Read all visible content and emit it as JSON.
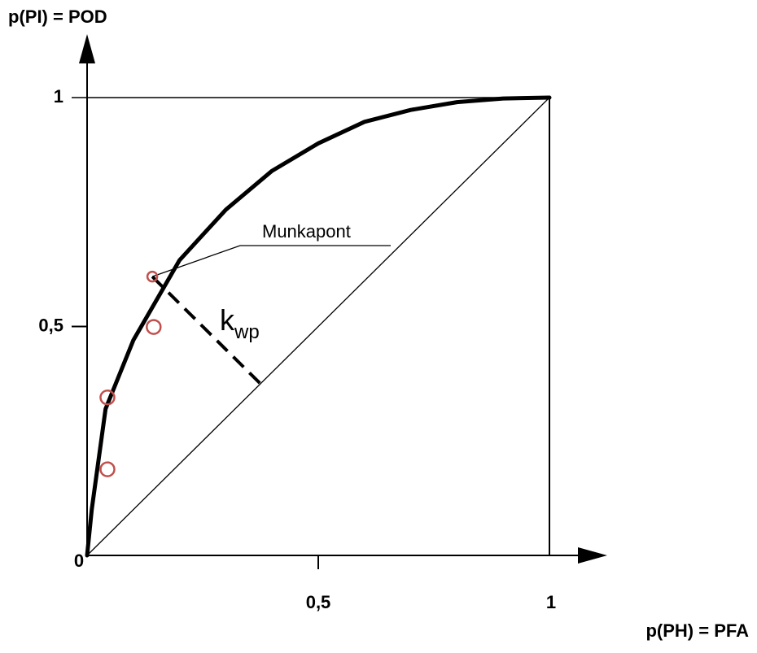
{
  "chart_data": {
    "type": "line",
    "x_label": "p(PH) = PFA",
    "y_label": "p(PI) = POD",
    "xlim": [
      0,
      1
    ],
    "ylim": [
      0,
      1
    ],
    "xticks": [
      0,
      {
        "value": 0.5,
        "label": "0,5"
      },
      1
    ],
    "yticks": [
      {
        "value": 0.5,
        "label": "0,5"
      },
      1
    ],
    "curve": {
      "color": "#000000",
      "x": [
        0,
        0.01,
        0.04,
        0.1,
        0.2,
        0.3,
        0.4,
        0.5,
        0.6,
        0.7,
        0.8,
        0.9,
        1
      ],
      "y": [
        0,
        0.1,
        0.32,
        0.47,
        0.645,
        0.755,
        0.84,
        0.9,
        0.947,
        0.973,
        0.99,
        0.998,
        1
      ]
    },
    "points": {
      "color": "#c0504d",
      "x": [
        0.141,
        0.144,
        0.044,
        0.044
      ],
      "y": [
        0.609,
        0.499,
        0.345,
        0.188
      ]
    },
    "annotation": "Munkapont",
    "distance_label": {
      "text": "k",
      "subscript": "wp"
    }
  }
}
